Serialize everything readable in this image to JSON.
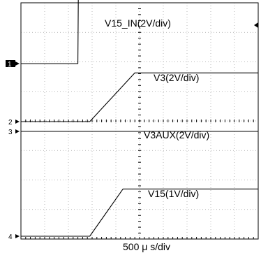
{
  "chart_data": {
    "type": "line",
    "title": "",
    "xlabel": "500 μ s/div",
    "ylabel": "",
    "time_per_div_us": 500,
    "grid": true,
    "grid_divisions": {
      "x": 10,
      "y": 8
    },
    "series": [
      {
        "name": "V15_IN(2V/div)",
        "channel": "1",
        "values_div": [
          [
            0,
            0
          ],
          [
            2.4,
            0
          ],
          [
            2.42,
            2.6
          ],
          [
            10,
            2.6
          ]
        ]
      },
      {
        "name": "V3(2V/div)",
        "channel": "2",
        "values_div": [
          [
            0,
            0
          ],
          [
            2.9,
            0
          ],
          [
            4.8,
            1.65
          ],
          [
            10,
            1.65
          ]
        ]
      },
      {
        "name": "V3AUX(2V/div)",
        "channel": "3",
        "values_div": [
          [
            0,
            0
          ],
          [
            10,
            0
          ]
        ]
      },
      {
        "name": "V15(1V/div)",
        "channel": "4",
        "values_div": [
          [
            0,
            0
          ],
          [
            2.9,
            0
          ],
          [
            4.3,
            1.6
          ],
          [
            10,
            1.6
          ]
        ]
      }
    ],
    "channel_markers": [
      "1",
      "2",
      "3",
      "4"
    ]
  }
}
